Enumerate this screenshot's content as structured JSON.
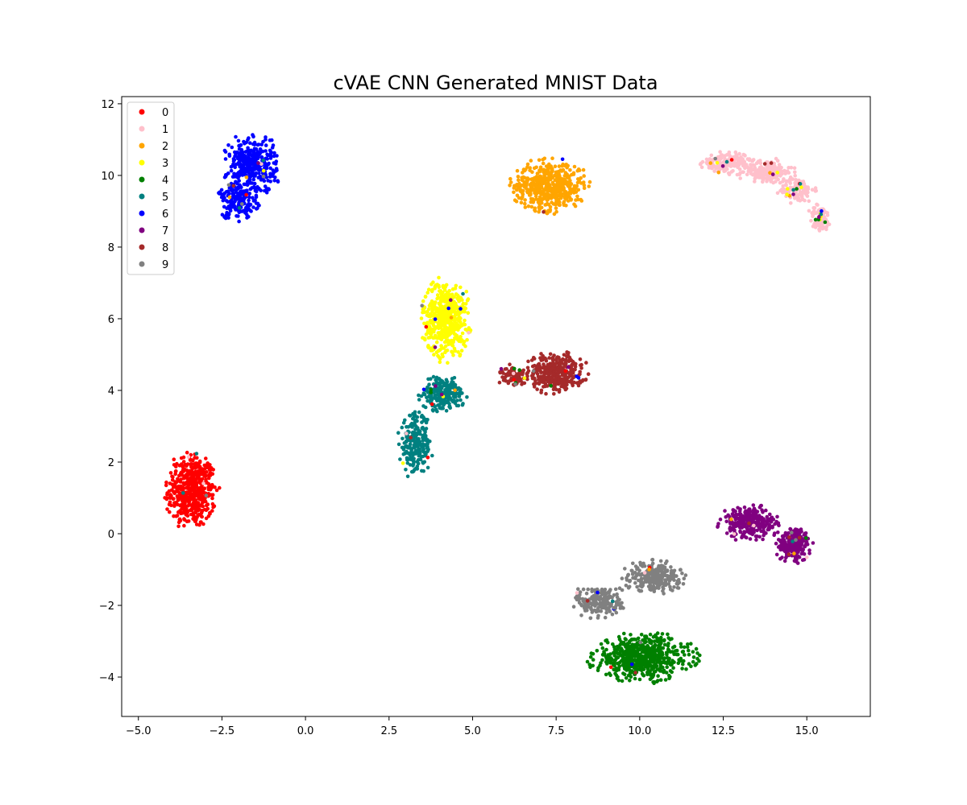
{
  "chart_data": {
    "type": "scatter",
    "title": "cVAE CNN Generated MNIST Data",
    "xlabel": "",
    "ylabel": "",
    "xlim": [
      -5.5,
      16.9
    ],
    "ylim": [
      -5.1,
      12.2
    ],
    "x_ticks": [
      -5.0,
      -2.5,
      0.0,
      2.5,
      5.0,
      7.5,
      10.0,
      12.5,
      15.0
    ],
    "x_tick_labels": [
      "−5.0",
      "−2.5",
      "0.0",
      "2.5",
      "5.0",
      "7.5",
      "10.0",
      "12.5",
      "15.0"
    ],
    "y_ticks": [
      -4,
      -2,
      0,
      2,
      4,
      6,
      8,
      10,
      12
    ],
    "y_tick_labels": [
      "−4",
      "−2",
      "0",
      "2",
      "4",
      "6",
      "8",
      "10",
      "12"
    ],
    "grid": false,
    "legend_position": "top-left",
    "series": [
      {
        "name": "0",
        "color": "#ff0000",
        "clusters": [
          {
            "cx": -3.4,
            "cy": 1.2,
            "rx": 0.85,
            "ry": 1.2,
            "n": 520
          }
        ]
      },
      {
        "name": "1",
        "color": "#ffc0cb",
        "clusters": [
          {
            "cx": 12.6,
            "cy": 10.35,
            "rx": 0.9,
            "ry": 0.35,
            "n": 150
          },
          {
            "cx": 13.8,
            "cy": 10.1,
            "rx": 0.9,
            "ry": 0.4,
            "n": 170
          },
          {
            "cx": 14.7,
            "cy": 9.6,
            "rx": 0.6,
            "ry": 0.4,
            "n": 110
          },
          {
            "cx": 15.4,
            "cy": 8.8,
            "rx": 0.4,
            "ry": 0.45,
            "n": 80
          }
        ]
      },
      {
        "name": "2",
        "color": "#ffa500",
        "clusters": [
          {
            "cx": 7.3,
            "cy": 9.7,
            "rx": 1.25,
            "ry": 0.8,
            "n": 520
          }
        ]
      },
      {
        "name": "3",
        "color": "#ffff00",
        "clusters": [
          {
            "cx": 4.2,
            "cy": 6.0,
            "rx": 0.8,
            "ry": 1.25,
            "n": 500
          }
        ]
      },
      {
        "name": "4",
        "color": "#008000",
        "clusters": [
          {
            "cx": 10.1,
            "cy": -3.45,
            "rx": 1.7,
            "ry": 0.75,
            "n": 600
          }
        ]
      },
      {
        "name": "5",
        "color": "#008080",
        "clusters": [
          {
            "cx": 3.3,
            "cy": 2.5,
            "rx": 0.55,
            "ry": 1.0,
            "n": 230
          },
          {
            "cx": 4.1,
            "cy": 3.9,
            "rx": 0.75,
            "ry": 0.55,
            "n": 230
          }
        ]
      },
      {
        "name": "6",
        "color": "#0000ff",
        "clusters": [
          {
            "cx": -1.6,
            "cy": 10.3,
            "rx": 0.9,
            "ry": 0.95,
            "n": 320
          },
          {
            "cx": -2.0,
            "cy": 9.3,
            "rx": 0.7,
            "ry": 0.6,
            "n": 170
          }
        ]
      },
      {
        "name": "7",
        "color": "#800080",
        "clusters": [
          {
            "cx": 13.3,
            "cy": 0.3,
            "rx": 1.0,
            "ry": 0.55,
            "n": 260
          },
          {
            "cx": 14.6,
            "cy": -0.3,
            "rx": 0.6,
            "ry": 0.55,
            "n": 200
          }
        ]
      },
      {
        "name": "8",
        "color": "#a52a2a",
        "clusters": [
          {
            "cx": 7.5,
            "cy": 4.5,
            "rx": 1.0,
            "ry": 0.65,
            "n": 350
          },
          {
            "cx": 6.2,
            "cy": 4.4,
            "rx": 0.5,
            "ry": 0.35,
            "n": 80
          }
        ]
      },
      {
        "name": "9",
        "color": "#808080",
        "clusters": [
          {
            "cx": 8.8,
            "cy": -1.9,
            "rx": 0.85,
            "ry": 0.55,
            "n": 200
          },
          {
            "cx": 10.4,
            "cy": -1.2,
            "rx": 1.0,
            "ry": 0.5,
            "n": 240
          }
        ]
      }
    ]
  }
}
